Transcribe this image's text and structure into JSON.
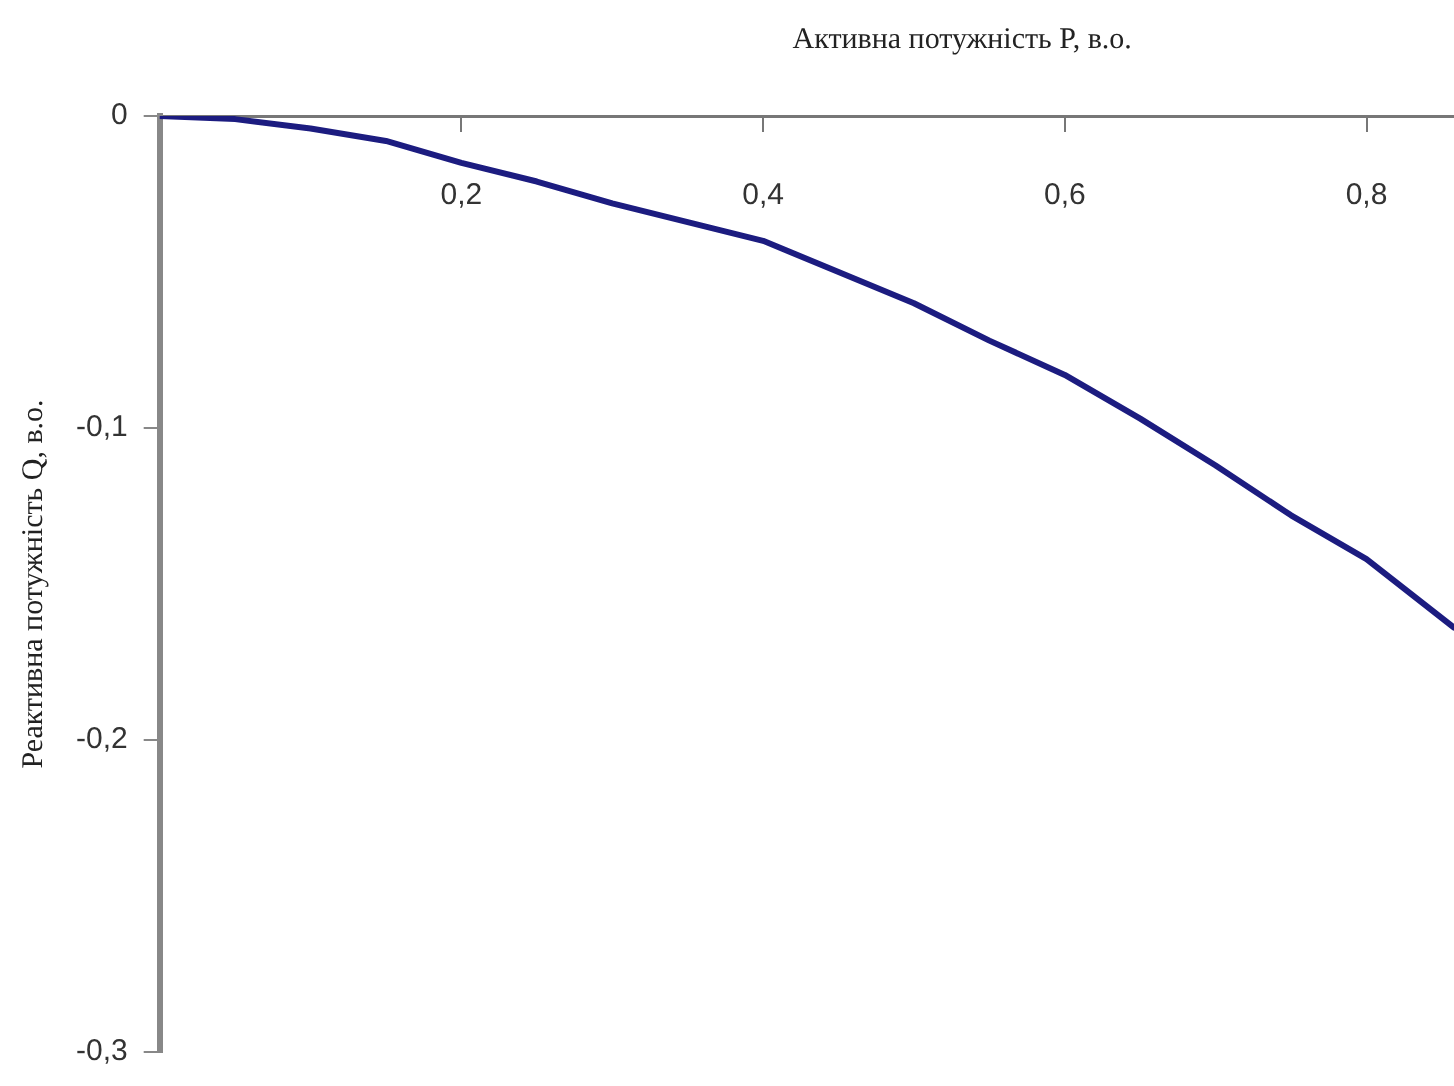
{
  "chart_data": {
    "type": "line",
    "xlabel": "Активна потужність P, в.о.",
    "ylabel": "Реактивна потужність Q, в.о.",
    "x": [
      0,
      0.05,
      0.1,
      0.15,
      0.2,
      0.25,
      0.3,
      0.35,
      0.4,
      0.45,
      0.5,
      0.55,
      0.6,
      0.65,
      0.7,
      0.75,
      0.8,
      0.858
    ],
    "series": [
      {
        "color": "#1c1c80",
        "values": [
          0,
          -0.001,
          -0.004,
          -0.008,
          -0.015,
          -0.021,
          -0.028,
          -0.034,
          -0.04,
          -0.05,
          -0.06,
          -0.072,
          -0.083,
          -0.097,
          -0.112,
          -0.128,
          -0.142,
          -0.164
        ]
      }
    ],
    "xlim": [
      0,
      0.858
    ],
    "xticks": [
      {
        "value": 0.2,
        "label": "0,2"
      },
      {
        "value": 0.4,
        "label": "0,4"
      },
      {
        "value": 0.6,
        "label": "0,6"
      },
      {
        "value": 0.8,
        "label": "0,8"
      }
    ],
    "ylim": [
      -0.3,
      0
    ],
    "yticks": [
      0,
      {
        "value": -0.1,
        "label": "-0,1"
      },
      {
        "value": -0.2,
        "label": "-0,2"
      },
      {
        "value": -0.3,
        "label": "-0,3"
      }
    ],
    "grid": false,
    "legend": false,
    "marker": "none",
    "line_style": "solid"
  }
}
